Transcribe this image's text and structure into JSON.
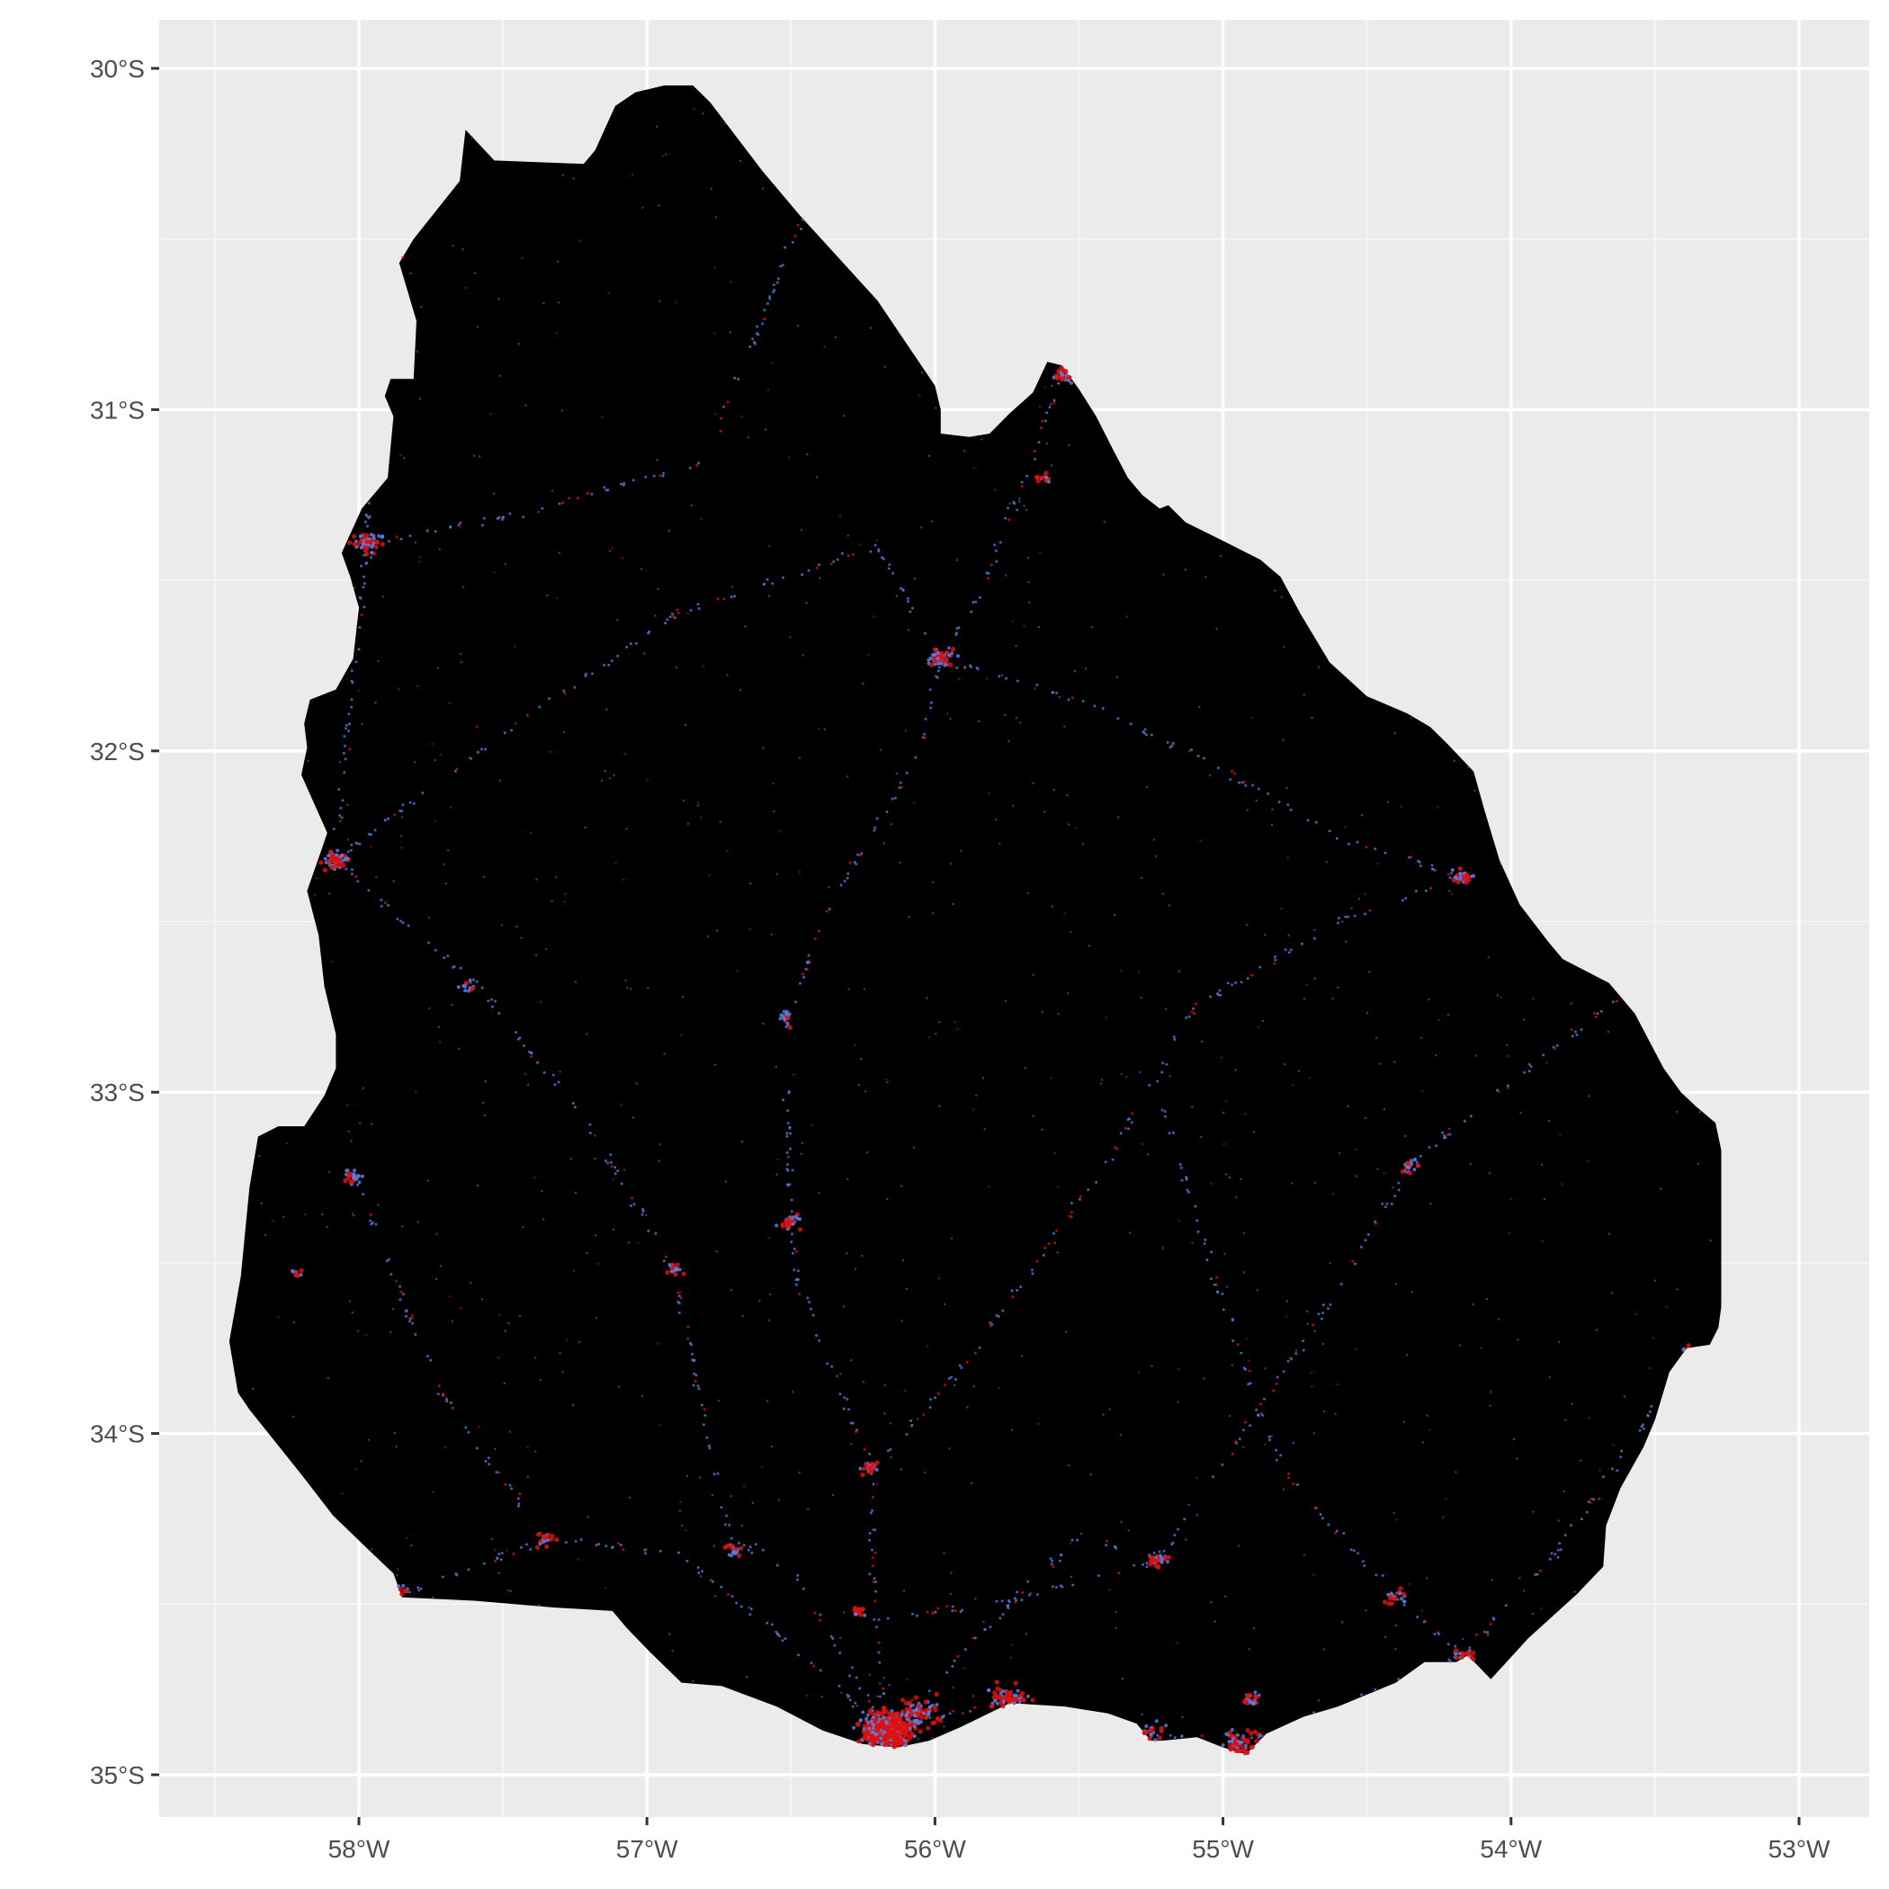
{
  "map": {
    "projection": "geographic (lon/lat)",
    "lon_range": [
      -58.7,
      -52.85
    ],
    "lat_range": [
      -35.17,
      -29.86
    ],
    "x_ticks": [
      {
        "value": -58,
        "label": "58°W"
      },
      {
        "value": -57,
        "label": "57°W"
      },
      {
        "value": -56,
        "label": "56°W"
      },
      {
        "value": -55,
        "label": "55°W"
      },
      {
        "value": -54,
        "label": "54°W"
      },
      {
        "value": -53,
        "label": "53°W"
      }
    ],
    "y_ticks": [
      {
        "value": -30,
        "label": "30°S"
      },
      {
        "value": -31,
        "label": "31°S"
      },
      {
        "value": -32,
        "label": "32°S"
      },
      {
        "value": -33,
        "label": "33°S"
      },
      {
        "value": -34,
        "label": "34°S"
      },
      {
        "value": -35,
        "label": "35°S"
      }
    ],
    "colors": {
      "panel_background": "#ebebeb",
      "grid": "#ffffff",
      "land": "#000000",
      "dots_blue": "#5b7fe0",
      "dots_red": "#dd1111",
      "axis_text": "#4d4d4d",
      "axis_ticks": "#333333"
    },
    "outline": [
      [
        -57.63,
        -30.18
      ],
      [
        -57.53,
        -30.27
      ],
      [
        -57.22,
        -30.28
      ],
      [
        -57.18,
        -30.24
      ],
      [
        -57.11,
        -30.11
      ],
      [
        -57.04,
        -30.07
      ],
      [
        -56.94,
        -30.05
      ],
      [
        -56.84,
        -30.05
      ],
      [
        -56.78,
        -30.1
      ],
      [
        -56.6,
        -30.3
      ],
      [
        -56.47,
        -30.43
      ],
      [
        -56.2,
        -30.68
      ],
      [
        -56.08,
        -30.83
      ],
      [
        -56.0,
        -30.93
      ],
      [
        -55.98,
        -31.0
      ],
      [
        -55.98,
        -31.07
      ],
      [
        -55.88,
        -31.08
      ],
      [
        -55.81,
        -31.07
      ],
      [
        -55.74,
        -31.01
      ],
      [
        -55.66,
        -30.95
      ],
      [
        -55.61,
        -30.86
      ],
      [
        -55.56,
        -30.87
      ],
      [
        -55.5,
        -30.94
      ],
      [
        -55.44,
        -31.02
      ],
      [
        -55.38,
        -31.12
      ],
      [
        -55.33,
        -31.2
      ],
      [
        -55.28,
        -31.25
      ],
      [
        -55.22,
        -31.29
      ],
      [
        -55.19,
        -31.28
      ],
      [
        -55.13,
        -31.33
      ],
      [
        -55.01,
        -31.38
      ],
      [
        -54.87,
        -31.44
      ],
      [
        -54.8,
        -31.49
      ],
      [
        -54.73,
        -31.6
      ],
      [
        -54.63,
        -31.74
      ],
      [
        -54.5,
        -31.84
      ],
      [
        -54.36,
        -31.89
      ],
      [
        -54.28,
        -31.93
      ],
      [
        -54.22,
        -31.98
      ],
      [
        -54.13,
        -32.06
      ],
      [
        -54.09,
        -32.18
      ],
      [
        -54.04,
        -32.32
      ],
      [
        -53.97,
        -32.45
      ],
      [
        -53.87,
        -32.56
      ],
      [
        -53.82,
        -32.61
      ],
      [
        -53.66,
        -32.68
      ],
      [
        -53.57,
        -32.77
      ],
      [
        -53.47,
        -32.93
      ],
      [
        -53.41,
        -33.0
      ],
      [
        -53.36,
        -33.04
      ],
      [
        -53.29,
        -33.09
      ],
      [
        -53.27,
        -33.17
      ],
      [
        -53.27,
        -33.4
      ],
      [
        -53.27,
        -33.63
      ],
      [
        -53.28,
        -33.69
      ],
      [
        -53.31,
        -33.74
      ],
      [
        -53.39,
        -33.75
      ],
      [
        -53.45,
        -33.82
      ],
      [
        -53.5,
        -33.96
      ],
      [
        -53.54,
        -34.04
      ],
      [
        -53.62,
        -34.16
      ],
      [
        -53.67,
        -34.27
      ],
      [
        -53.68,
        -34.39
      ],
      [
        -53.77,
        -34.47
      ],
      [
        -53.94,
        -34.6
      ],
      [
        -54.07,
        -34.72
      ],
      [
        -54.15,
        -34.65
      ],
      [
        -54.19,
        -34.67
      ],
      [
        -54.3,
        -34.67
      ],
      [
        -54.4,
        -34.73
      ],
      [
        -54.6,
        -34.8
      ],
      [
        -54.72,
        -34.83
      ],
      [
        -54.85,
        -34.88
      ],
      [
        -54.92,
        -34.94
      ],
      [
        -55.0,
        -34.92
      ],
      [
        -55.09,
        -34.89
      ],
      [
        -55.21,
        -34.9
      ],
      [
        -55.25,
        -34.9
      ],
      [
        -55.3,
        -34.85
      ],
      [
        -55.4,
        -34.82
      ],
      [
        -55.55,
        -34.8
      ],
      [
        -55.74,
        -34.79
      ],
      [
        -55.91,
        -34.86
      ],
      [
        -56.02,
        -34.9
      ],
      [
        -56.13,
        -34.92
      ],
      [
        -56.25,
        -34.91
      ],
      [
        -56.39,
        -34.87
      ],
      [
        -56.55,
        -34.8
      ],
      [
        -56.74,
        -34.74
      ],
      [
        -56.88,
        -34.73
      ],
      [
        -56.99,
        -34.64
      ],
      [
        -57.07,
        -34.57
      ],
      [
        -57.12,
        -34.52
      ],
      [
        -57.32,
        -34.51
      ],
      [
        -57.6,
        -34.49
      ],
      [
        -57.85,
        -34.48
      ],
      [
        -57.88,
        -34.41
      ],
      [
        -57.98,
        -34.33
      ],
      [
        -58.09,
        -34.24
      ],
      [
        -58.2,
        -34.12
      ],
      [
        -58.38,
        -33.93
      ],
      [
        -58.42,
        -33.88
      ],
      [
        -58.45,
        -33.73
      ],
      [
        -58.41,
        -33.54
      ],
      [
        -58.38,
        -33.28
      ],
      [
        -58.35,
        -33.13
      ],
      [
        -58.28,
        -33.1
      ],
      [
        -58.19,
        -33.1
      ],
      [
        -58.12,
        -33.01
      ],
      [
        -58.08,
        -32.93
      ],
      [
        -58.08,
        -32.83
      ],
      [
        -58.12,
        -32.69
      ],
      [
        -58.14,
        -32.54
      ],
      [
        -58.18,
        -32.41
      ],
      [
        -58.13,
        -32.29
      ],
      [
        -58.11,
        -32.24
      ],
      [
        -58.2,
        -32.07
      ],
      [
        -58.18,
        -31.99
      ],
      [
        -58.19,
        -31.92
      ],
      [
        -58.17,
        -31.85
      ],
      [
        -58.08,
        -31.82
      ],
      [
        -58.02,
        -31.73
      ],
      [
        -58.0,
        -31.58
      ],
      [
        -58.03,
        -31.49
      ],
      [
        -58.06,
        -31.42
      ],
      [
        -57.99,
        -31.29
      ],
      [
        -57.9,
        -31.2
      ],
      [
        -57.88,
        -31.02
      ],
      [
        -57.91,
        -30.96
      ],
      [
        -57.89,
        -30.91
      ],
      [
        -57.81,
        -30.91
      ],
      [
        -57.8,
        -30.74
      ],
      [
        -57.86,
        -30.57
      ],
      [
        -57.81,
        -30.5
      ],
      [
        -57.65,
        -30.33
      ],
      [
        -57.63,
        -30.18
      ]
    ],
    "hubs": [
      {
        "lon": -56.17,
        "lat": -34.87,
        "spread": 0.07,
        "n": 520,
        "red": 0.75
      },
      {
        "lon": -56.05,
        "lat": -34.82,
        "spread": 0.06,
        "n": 90,
        "red": 0.5
      },
      {
        "lon": -55.75,
        "lat": -34.78,
        "spread": 0.06,
        "n": 70,
        "red": 0.55
      },
      {
        "lon": -54.95,
        "lat": -34.91,
        "spread": 0.06,
        "n": 70,
        "red": 0.55
      },
      {
        "lon": -55.25,
        "lat": -34.88,
        "spread": 0.04,
        "n": 30,
        "red": 0.5
      },
      {
        "lon": -57.97,
        "lat": -31.39,
        "spread": 0.04,
        "n": 60,
        "red": 0.5
      },
      {
        "lon": -58.08,
        "lat": -32.32,
        "spread": 0.04,
        "n": 60,
        "red": 0.5
      },
      {
        "lon": -55.98,
        "lat": -31.73,
        "spread": 0.04,
        "n": 50,
        "red": 0.55
      },
      {
        "lon": -55.55,
        "lat": -30.9,
        "spread": 0.03,
        "n": 40,
        "red": 0.6
      },
      {
        "lon": -54.17,
        "lat": -32.37,
        "spread": 0.03,
        "n": 30,
        "red": 0.5
      },
      {
        "lon": -58.02,
        "lat": -33.25,
        "spread": 0.03,
        "n": 25,
        "red": 0.4
      },
      {
        "lon": -56.5,
        "lat": -33.38,
        "spread": 0.03,
        "n": 30,
        "red": 0.5
      },
      {
        "lon": -56.9,
        "lat": -33.52,
        "spread": 0.03,
        "n": 20,
        "red": 0.45
      },
      {
        "lon": -56.22,
        "lat": -34.1,
        "spread": 0.03,
        "n": 25,
        "red": 0.5
      },
      {
        "lon": -54.4,
        "lat": -34.48,
        "spread": 0.03,
        "n": 25,
        "red": 0.5
      },
      {
        "lon": -54.16,
        "lat": -34.65,
        "spread": 0.03,
        "n": 25,
        "red": 0.5
      },
      {
        "lon": -55.22,
        "lat": -34.37,
        "spread": 0.03,
        "n": 25,
        "red": 0.5
      },
      {
        "lon": -56.7,
        "lat": -34.34,
        "spread": 0.03,
        "n": 20,
        "red": 0.5
      },
      {
        "lon": -57.35,
        "lat": -34.31,
        "spread": 0.03,
        "n": 18,
        "red": 0.4
      },
      {
        "lon": -57.85,
        "lat": -34.47,
        "spread": 0.03,
        "n": 15,
        "red": 0.4
      },
      {
        "lon": -54.35,
        "lat": -33.22,
        "spread": 0.03,
        "n": 20,
        "red": 0.45
      },
      {
        "lon": -56.52,
        "lat": -32.78,
        "spread": 0.03,
        "n": 15,
        "red": 0.35
      },
      {
        "lon": -53.4,
        "lat": -32.58,
        "spread": 0.02,
        "n": 12,
        "red": 0.3
      },
      {
        "lon": -55.62,
        "lat": -31.2,
        "spread": 0.02,
        "n": 12,
        "red": 0.6
      },
      {
        "lon": -57.62,
        "lat": -32.69,
        "spread": 0.02,
        "n": 12,
        "red": 0.4
      },
      {
        "lon": -58.22,
        "lat": -33.53,
        "spread": 0.02,
        "n": 10,
        "red": 0.4
      },
      {
        "lon": -56.26,
        "lat": -34.52,
        "spread": 0.02,
        "n": 15,
        "red": 0.55
      },
      {
        "lon": -56.45,
        "lat": -30.42,
        "spread": 0.02,
        "n": 10,
        "red": 0.4
      },
      {
        "lon": -53.38,
        "lat": -33.75,
        "spread": 0.02,
        "n": 10,
        "red": 0.4
      },
      {
        "lon": -54.9,
        "lat": -34.78,
        "spread": 0.03,
        "n": 25,
        "red": 0.4
      }
    ],
    "roads": [
      [
        [
          -56.17,
          -34.87
        ],
        [
          -56.21,
          -34.55
        ],
        [
          -56.22,
          -34.1
        ],
        [
          -56.32,
          -33.9
        ],
        [
          -56.48,
          -33.55
        ],
        [
          -56.5,
          -33.38
        ],
        [
          -56.52,
          -32.8
        ],
        [
          -56.35,
          -32.43
        ],
        [
          -56.05,
          -32.0
        ],
        [
          -55.98,
          -31.73
        ],
        [
          -55.85,
          -31.55
        ],
        [
          -55.6,
          -31.0
        ],
        [
          -55.55,
          -30.9
        ]
      ],
      [
        [
          -56.17,
          -34.87
        ],
        [
          -56.6,
          -34.55
        ],
        [
          -56.9,
          -34.35
        ],
        [
          -57.35,
          -34.31
        ],
        [
          -57.85,
          -34.47
        ]
      ],
      [
        [
          -56.17,
          -34.87
        ],
        [
          -56.5,
          -34.4
        ],
        [
          -56.72,
          -34.3
        ],
        [
          -56.9,
          -33.53
        ],
        [
          -57.2,
          -33.1
        ],
        [
          -57.6,
          -32.68
        ],
        [
          -58.08,
          -32.32
        ]
      ],
      [
        [
          -58.08,
          -32.32
        ],
        [
          -58.03,
          -31.9
        ],
        [
          -57.97,
          -31.39
        ],
        [
          -57.95,
          -30.8
        ],
        [
          -57.75,
          -30.3
        ],
        [
          -57.6,
          -30.2
        ]
      ],
      [
        [
          -56.17,
          -34.87
        ],
        [
          -55.75,
          -34.78
        ],
        [
          -55.25,
          -34.88
        ],
        [
          -54.95,
          -34.91
        ],
        [
          -54.6,
          -34.8
        ],
        [
          -54.16,
          -34.65
        ]
      ],
      [
        [
          -56.17,
          -34.87
        ],
        [
          -55.5,
          -34.3
        ],
        [
          -55.22,
          -34.37
        ],
        [
          -54.85,
          -33.9
        ],
        [
          -54.55,
          -33.5
        ],
        [
          -54.35,
          -33.22
        ],
        [
          -53.9,
          -32.9
        ],
        [
          -53.4,
          -32.58
        ]
      ],
      [
        [
          -54.16,
          -34.65
        ],
        [
          -54.4,
          -34.48
        ],
        [
          -54.8,
          -34.1
        ],
        [
          -55.05,
          -33.5
        ],
        [
          -55.2,
          -33.05
        ]
      ],
      [
        [
          -55.98,
          -31.73
        ],
        [
          -55.5,
          -31.85
        ],
        [
          -55.0,
          -32.05
        ],
        [
          -54.6,
          -32.25
        ],
        [
          -54.17,
          -32.37
        ]
      ],
      [
        [
          -58.08,
          -32.32
        ],
        [
          -57.5,
          -31.95
        ],
        [
          -56.9,
          -31.6
        ],
        [
          -56.2,
          -31.4
        ],
        [
          -55.98,
          -31.73
        ]
      ],
      [
        [
          -57.97,
          -31.39
        ],
        [
          -57.4,
          -31.3
        ],
        [
          -56.8,
          -31.15
        ],
        [
          -56.45,
          -30.42
        ]
      ],
      [
        [
          -56.22,
          -34.1
        ],
        [
          -55.9,
          -33.8
        ],
        [
          -55.4,
          -33.2
        ],
        [
          -55.1,
          -32.75
        ],
        [
          -54.6,
          -32.5
        ],
        [
          -54.17,
          -32.37
        ]
      ],
      [
        [
          -57.35,
          -34.31
        ],
        [
          -57.7,
          -33.9
        ],
        [
          -58.02,
          -33.25
        ]
      ],
      [
        [
          -56.21,
          -34.55
        ],
        [
          -55.8,
          -34.5
        ],
        [
          -55.22,
          -34.37
        ]
      ],
      [
        [
          -53.38,
          -33.75
        ],
        [
          -53.6,
          -34.05
        ],
        [
          -53.8,
          -34.3
        ],
        [
          -54.16,
          -34.65
        ]
      ]
    ],
    "rural_dot_count": 1300
  }
}
